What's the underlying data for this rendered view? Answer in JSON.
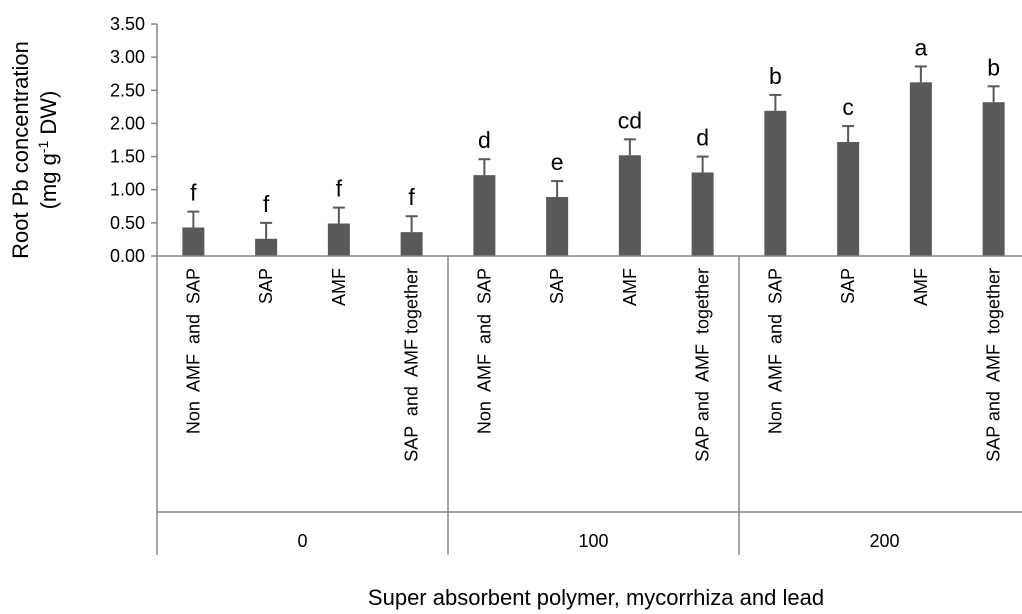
{
  "chart_data": {
    "type": "bar",
    "xlabel": "Super absorbent polymer, mycorrhiza and lead",
    "ylabel_line1": "Root Pb concentration",
    "ylabel_line2_pre": "(mg g",
    "ylabel_sup": "-1",
    "ylabel_line2_post": " DW)",
    "ylim": [
      0,
      3.5
    ],
    "yticks": [
      "0.00",
      "0.50",
      "1.00",
      "1.50",
      "2.00",
      "2.50",
      "3.00",
      "3.50"
    ],
    "grid": false,
    "legend": "none",
    "bar_color": "#595959",
    "groups": [
      {
        "label": "0",
        "bars": [
          {
            "category": "Non  AMF  and  SAP",
            "value": 0.43,
            "error": 0.24,
            "letter": "f"
          },
          {
            "category": "SAP",
            "value": 0.26,
            "error": 0.24,
            "letter": "f"
          },
          {
            "category": "AMF",
            "value": 0.49,
            "error": 0.24,
            "letter": "f"
          },
          {
            "category": "SAP  and  AMF together",
            "value": 0.36,
            "error": 0.24,
            "letter": "f"
          }
        ]
      },
      {
        "label": "100",
        "bars": [
          {
            "category": "Non  AMF  and  SAP",
            "value": 1.22,
            "error": 0.24,
            "letter": "d"
          },
          {
            "category": "SAP",
            "value": 0.89,
            "error": 0.24,
            "letter": "e"
          },
          {
            "category": "AMF",
            "value": 1.52,
            "error": 0.24,
            "letter": "cd"
          },
          {
            "category": "SAP and  AMF  together",
            "value": 1.26,
            "error": 0.24,
            "letter": "d"
          }
        ]
      },
      {
        "label": "200",
        "bars": [
          {
            "category": "Non  AMF  and  SAP",
            "value": 2.19,
            "error": 0.24,
            "letter": "b"
          },
          {
            "category": "SAP",
            "value": 1.72,
            "error": 0.24,
            "letter": "c"
          },
          {
            "category": "AMF",
            "value": 2.62,
            "error": 0.24,
            "letter": "a"
          },
          {
            "category": "SAP and  AMF  together",
            "value": 2.32,
            "error": 0.24,
            "letter": "b"
          }
        ]
      }
    ]
  }
}
